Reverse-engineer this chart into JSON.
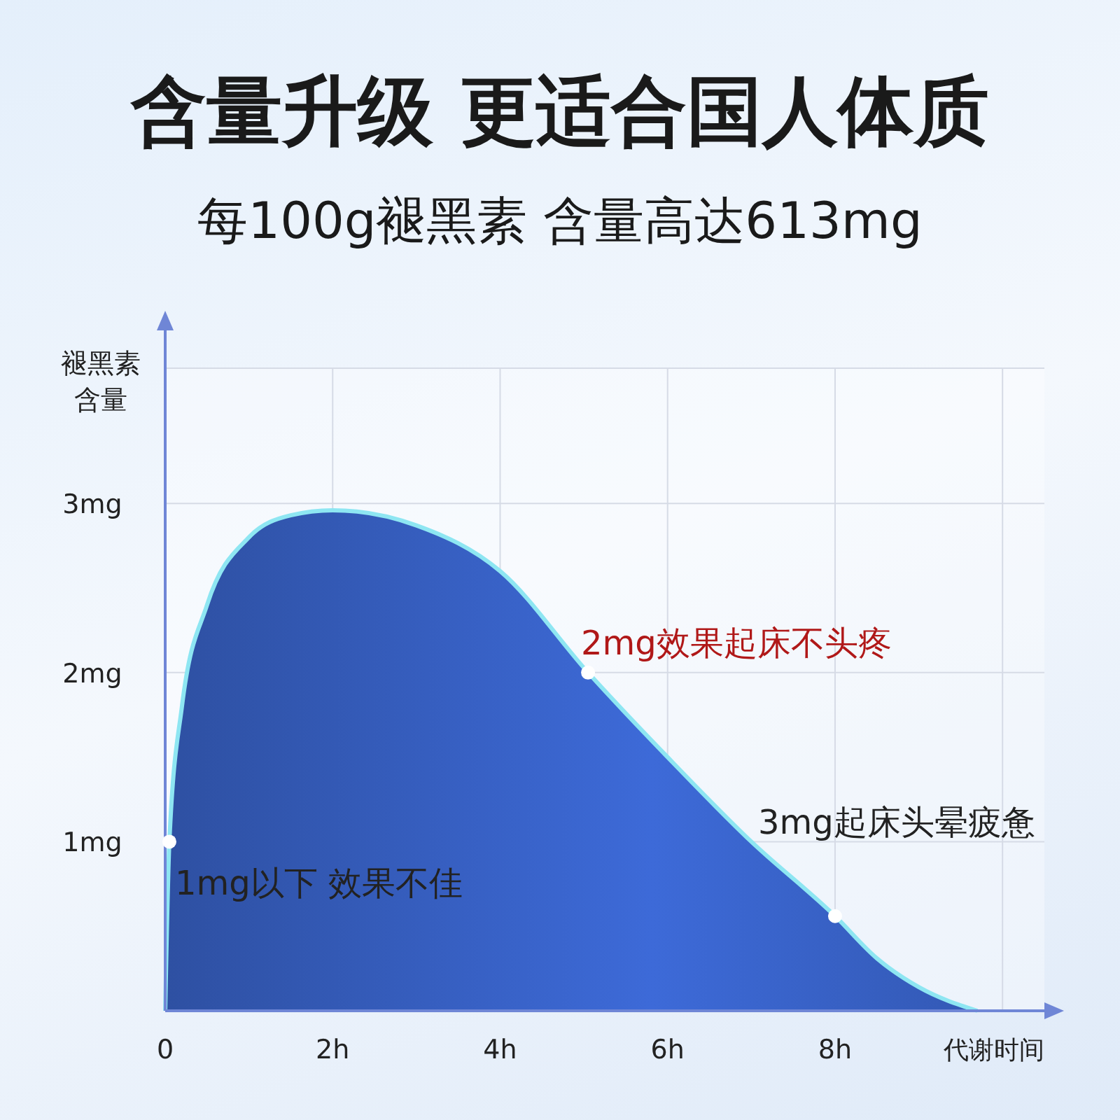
{
  "chart_data": {
    "type": "area",
    "title": "含量升级 更适合国人体质",
    "subtitle": "每100g褪黑素 含量高达613mg",
    "ylabel": "褪黑素含量",
    "xlabel": "代谢时间",
    "xlim": [
      0,
      10.5
    ],
    "ylim": [
      0,
      3.8
    ],
    "xticks": [
      {
        "value": 0,
        "label": "0"
      },
      {
        "value": 2,
        "label": "2h"
      },
      {
        "value": 4,
        "label": "4h"
      },
      {
        "value": 6,
        "label": "6h"
      },
      {
        "value": 8,
        "label": "8h"
      },
      {
        "value": 10,
        "label": null
      }
    ],
    "yticks": [
      {
        "value": 0,
        "label": null
      },
      {
        "value": 1,
        "label": "1mg"
      },
      {
        "value": 2,
        "label": "2mg"
      },
      {
        "value": 3,
        "label": "3mg"
      }
    ],
    "grid": true,
    "series": [
      {
        "color": "#3d6ad8",
        "x": [
          0,
          0.05,
          0.2,
          0.5,
          1,
          1.5,
          2,
          3,
          4,
          5.05,
          6,
          7,
          8,
          8.5,
          9,
          9.7
        ],
        "values": [
          0,
          1,
          1.8,
          2.4,
          2.8,
          2.93,
          2.96,
          2.87,
          2.6,
          2,
          1.5,
          1,
          0.56,
          0.31,
          0.14,
          0
        ]
      }
    ],
    "annotations": [
      {
        "text": "1mg以下 效果不佳",
        "x": 0.05,
        "y": 1
      },
      {
        "text": "2mg效果起床不头疼",
        "x": 5.05,
        "y": 2
      },
      {
        "text": "3mg起床头晕疲惫",
        "x": 8,
        "y": 0.56
      }
    ]
  }
}
